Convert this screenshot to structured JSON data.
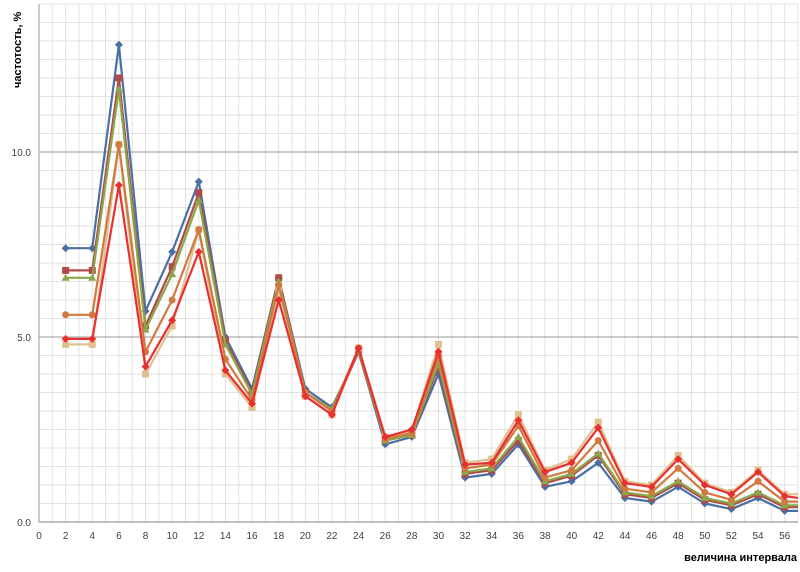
{
  "chart_data": {
    "type": "line",
    "xlabel": "величина интервала",
    "ylabel": "частотость, %",
    "xlim": [
      0,
      57
    ],
    "ylim": [
      0,
      14
    ],
    "x_ticks": [
      0,
      2,
      4,
      6,
      8,
      10,
      12,
      14,
      16,
      18,
      20,
      22,
      24,
      26,
      28,
      30,
      32,
      34,
      36,
      38,
      40,
      42,
      44,
      46,
      48,
      50,
      52,
      54,
      56
    ],
    "y_ticks": [
      {
        "value": 0,
        "label": "0.0"
      },
      {
        "value": 5,
        "label": "5.0"
      },
      {
        "value": 10,
        "label": "10.0"
      }
    ],
    "grid": true,
    "x": [
      2,
      4,
      6,
      8,
      10,
      12,
      14,
      16,
      18,
      20,
      22,
      24,
      26,
      28,
      30,
      32,
      34,
      36,
      38,
      40,
      42,
      44,
      46,
      48,
      50,
      52,
      54,
      56,
      57
    ],
    "series": [
      {
        "color": "#4a6fa5",
        "marker": "diamond",
        "values": [
          7.4,
          7.4,
          12.9,
          5.7,
          7.3,
          9.2,
          5.0,
          3.6,
          6.6,
          3.6,
          3.1,
          4.6,
          2.1,
          2.3,
          4.0,
          1.2,
          1.3,
          2.1,
          0.95,
          1.1,
          1.6,
          0.65,
          0.55,
          0.95,
          0.5,
          0.35,
          0.65,
          0.3,
          0.3
        ]
      },
      {
        "color": "#b04a48",
        "marker": "square",
        "values": [
          6.8,
          6.8,
          12.0,
          5.3,
          6.9,
          8.9,
          4.9,
          3.5,
          6.6,
          3.5,
          3.0,
          4.6,
          2.2,
          2.35,
          4.2,
          1.3,
          1.4,
          2.2,
          1.05,
          1.25,
          1.8,
          0.75,
          0.65,
          1.05,
          0.6,
          0.45,
          0.75,
          0.4,
          0.4
        ]
      },
      {
        "color": "#8aa84a",
        "marker": "triangle",
        "values": [
          6.6,
          6.6,
          11.7,
          5.2,
          6.7,
          8.7,
          4.8,
          3.45,
          6.5,
          3.5,
          3.05,
          4.65,
          2.2,
          2.35,
          4.3,
          1.35,
          1.45,
          2.3,
          1.1,
          1.3,
          1.85,
          0.8,
          0.7,
          1.1,
          0.65,
          0.5,
          0.8,
          0.45,
          0.45
        ]
      },
      {
        "color": "#e0c090",
        "marker": "square",
        "values": [
          4.8,
          4.8,
          10.2,
          4.0,
          5.3,
          7.9,
          4.0,
          3.1,
          6.3,
          3.4,
          2.9,
          4.7,
          2.3,
          2.45,
          4.8,
          1.6,
          1.7,
          2.9,
          1.4,
          1.7,
          2.7,
          1.1,
          1.0,
          1.8,
          1.05,
          0.8,
          1.4,
          0.75,
          0.75
        ]
      },
      {
        "color": "#d07a40",
        "marker": "circle",
        "values": [
          5.6,
          5.6,
          10.2,
          4.6,
          6.0,
          7.9,
          4.4,
          3.3,
          6.4,
          3.5,
          3.0,
          4.7,
          2.25,
          2.4,
          4.5,
          1.45,
          1.55,
          2.6,
          1.2,
          1.4,
          2.2,
          0.9,
          0.8,
          1.45,
          0.8,
          0.6,
          1.1,
          0.55,
          0.55
        ]
      },
      {
        "color": "#e83030",
        "marker": "diamond",
        "values": [
          4.95,
          4.95,
          9.1,
          4.2,
          5.45,
          7.3,
          4.1,
          3.2,
          6.0,
          3.4,
          2.9,
          4.7,
          2.3,
          2.5,
          4.6,
          1.55,
          1.6,
          2.75,
          1.35,
          1.6,
          2.55,
          1.05,
          0.95,
          1.7,
          1.0,
          0.75,
          1.35,
          0.7,
          0.65
        ]
      }
    ]
  }
}
